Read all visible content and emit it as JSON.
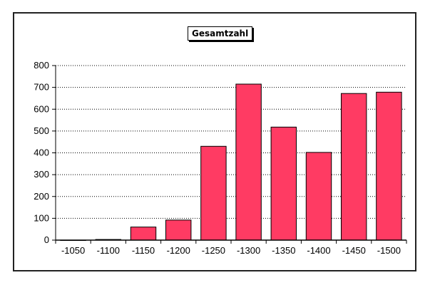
{
  "chart_data": {
    "type": "bar",
    "categories": [
      "-1050",
      "-1100",
      "-1150",
      "-1200",
      "-1250",
      "-1300",
      "-1350",
      "-1400",
      "-1450",
      "-1500"
    ],
    "series": [
      {
        "name": "Gesamtzahl",
        "values": [
          0,
          3,
          60,
          92,
          430,
          715,
          518,
          402,
          672,
          678
        ]
      }
    ],
    "title": "",
    "xlabel": "",
    "ylabel": "",
    "ylim": [
      0,
      800
    ],
    "yticks": [
      "0",
      "100",
      "200",
      "300",
      "400",
      "500",
      "600",
      "700",
      "800"
    ],
    "grid": true,
    "legend_position": "top-center",
    "bar_color": "#ff3b63",
    "bar_edge_color": "#000000"
  }
}
